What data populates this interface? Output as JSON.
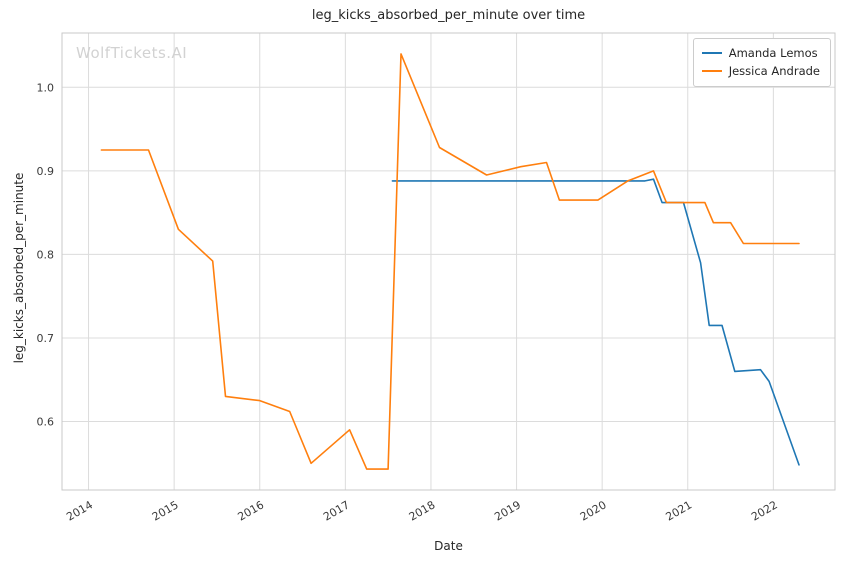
{
  "watermark": "WolfTickets.AI",
  "chart_data": {
    "type": "line",
    "title": "leg_kicks_absorbed_per_minute over time",
    "xlabel": "Date",
    "ylabel": "leg_kicks_absorbed_per_minute",
    "xlim": [
      2013.69,
      2022.72
    ],
    "ylim": [
      0.518,
      1.065
    ],
    "xticks": [
      2014,
      2015,
      2016,
      2017,
      2018,
      2019,
      2020,
      2021,
      2022
    ],
    "yticks": [
      "0.6",
      "0.7",
      "0.8",
      "0.9",
      "1.0"
    ],
    "grid": true,
    "legend_position": "upper right",
    "series": [
      {
        "name": "Amanda Lemos",
        "color": "#1f77b4",
        "x": [
          2017.55,
          2020.1,
          2020.5,
          2020.6,
          2020.7,
          2020.95,
          2021.15,
          2021.25,
          2021.4,
          2021.55,
          2021.85,
          2021.95,
          2022.3
        ],
        "y": [
          0.888,
          0.888,
          0.888,
          0.89,
          0.862,
          0.862,
          0.79,
          0.715,
          0.715,
          0.66,
          0.662,
          0.648,
          0.548
        ]
      },
      {
        "name": "Jessica Andrade",
        "color": "#ff7f0e",
        "x": [
          2014.15,
          2014.7,
          2015.05,
          2015.45,
          2015.6,
          2016.0,
          2016.35,
          2016.6,
          2017.05,
          2017.25,
          2017.5,
          2017.65,
          2018.1,
          2018.65,
          2019.05,
          2019.35,
          2019.5,
          2019.95,
          2020.3,
          2020.6,
          2020.75,
          2021.2,
          2021.3,
          2021.5,
          2021.65,
          2022.3
        ],
        "y": [
          0.925,
          0.925,
          0.83,
          0.792,
          0.63,
          0.625,
          0.612,
          0.55,
          0.59,
          0.543,
          0.543,
          1.04,
          0.928,
          0.895,
          0.905,
          0.91,
          0.865,
          0.865,
          0.888,
          0.9,
          0.862,
          0.862,
          0.838,
          0.838,
          0.813,
          0.813
        ]
      }
    ]
  }
}
